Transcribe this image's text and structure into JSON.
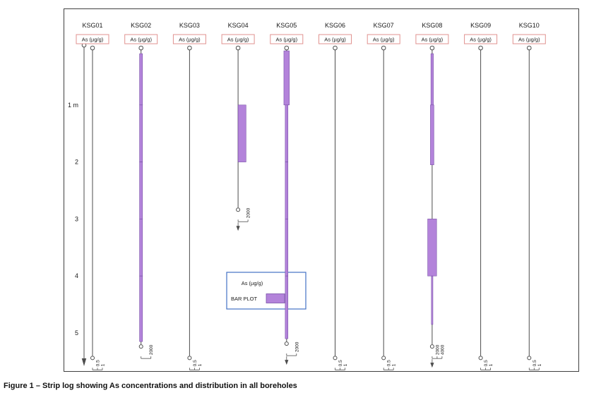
{
  "page": {
    "caption": "Figure 1 – Strip log showing As concentrations and distribution in all boreholes"
  },
  "legend": {
    "param_label": "As (µg/g)",
    "bar_label": "BAR PLOT"
  },
  "depth_axis": {
    "unit": "m",
    "tick_labels": [
      "1 m",
      "2",
      "3",
      "4",
      "5"
    ],
    "tick_depths_m": [
      1,
      2,
      3,
      4,
      5
    ]
  },
  "chart_data": {
    "type": "bar",
    "title": "Strip log of As concentrations by borehole",
    "parameter": "As (µg/g)",
    "unit": "µg/g",
    "depth_unit": "m",
    "legend_position": "inside-center",
    "colors": {
      "bar_fill": "#b383da",
      "bar_stroke": "#7a52a8",
      "header_box_border": "#e0928f",
      "line": "#4d4d4d",
      "legend_border": "#4472c4",
      "text": "#1a1a1a"
    },
    "boreholes": [
      {
        "id": "KSG01",
        "parameter": "As (µg/g)",
        "total_depth_m": 5.4,
        "scale_labels": [
          "0.5",
          "1"
        ],
        "scale_max": 1,
        "has_bottom_arrow": false,
        "bars": []
      },
      {
        "id": "KSG02",
        "parameter": "As (µg/g)",
        "total_depth_m": 5.2,
        "scale_labels": [
          "2000"
        ],
        "scale_max": 2000,
        "has_bottom_arrow": false,
        "bars": [
          {
            "top_m": 0.1,
            "bottom_m": 1.0,
            "value": 600
          },
          {
            "top_m": 1.0,
            "bottom_m": 2.0,
            "value": 600
          },
          {
            "top_m": 2.0,
            "bottom_m": 3.0,
            "value": 600
          },
          {
            "top_m": 3.0,
            "bottom_m": 4.0,
            "value": 600
          },
          {
            "top_m": 4.0,
            "bottom_m": 5.15,
            "value": 600
          }
        ]
      },
      {
        "id": "KSG03",
        "parameter": "As (µg/g)",
        "total_depth_m": 5.4,
        "scale_labels": [
          "0.5",
          "1"
        ],
        "scale_max": 1,
        "has_bottom_arrow": false,
        "bars": []
      },
      {
        "id": "KSG04",
        "parameter": "As (µg/g)",
        "total_depth_m": 2.8,
        "scale_labels": [
          "2000"
        ],
        "scale_max": 2000,
        "has_bottom_arrow": true,
        "bars": [
          {
            "top_m": 1.0,
            "bottom_m": 2.0,
            "value": 1600,
            "align": "right"
          }
        ]
      },
      {
        "id": "KSG05",
        "parameter": "As (µg/g)",
        "total_depth_m": 5.15,
        "scale_labels": [
          "2000"
        ],
        "scale_max": 2000,
        "has_bottom_arrow": true,
        "bars": [
          {
            "top_m": 0.05,
            "bottom_m": 1.0,
            "value": 1100
          },
          {
            "top_m": 1.0,
            "bottom_m": 2.0,
            "value": 550
          },
          {
            "top_m": 2.0,
            "bottom_m": 3.0,
            "value": 550
          },
          {
            "top_m": 3.0,
            "bottom_m": 4.0,
            "value": 550
          },
          {
            "top_m": 4.0,
            "bottom_m": 5.1,
            "value": 550
          }
        ]
      },
      {
        "id": "KSG06",
        "parameter": "As (µg/g)",
        "total_depth_m": 5.4,
        "scale_labels": [
          "0.5",
          "1"
        ],
        "scale_max": 1,
        "has_bottom_arrow": false,
        "bars": []
      },
      {
        "id": "KSG07",
        "parameter": "As (µg/g)",
        "total_depth_m": 5.4,
        "scale_labels": [
          "0.5",
          "1"
        ],
        "scale_max": 1,
        "has_bottom_arrow": false,
        "bars": []
      },
      {
        "id": "KSG08",
        "parameter": "As (µg/g)",
        "total_depth_m": 5.2,
        "scale_labels": [
          "2000",
          "4000"
        ],
        "scale_max": 4000,
        "has_bottom_arrow": true,
        "bars": [
          {
            "top_m": 0.1,
            "bottom_m": 1.0,
            "value": 1000
          },
          {
            "top_m": 1.0,
            "bottom_m": 2.05,
            "value": 1400
          },
          {
            "top_m": 3.0,
            "bottom_m": 4.0,
            "value": 3600
          },
          {
            "top_m": 4.0,
            "bottom_m": 4.85,
            "value": 600
          }
        ]
      },
      {
        "id": "KSG09",
        "parameter": "As (µg/g)",
        "total_depth_m": 5.4,
        "scale_labels": [
          "0.5",
          "1"
        ],
        "scale_max": 1,
        "has_bottom_arrow": false,
        "bars": []
      },
      {
        "id": "KSG10",
        "parameter": "As (µg/g)",
        "total_depth_m": 5.4,
        "scale_labels": [
          "0.5",
          "1"
        ],
        "scale_max": 1,
        "has_bottom_arrow": false,
        "bars": []
      }
    ]
  }
}
